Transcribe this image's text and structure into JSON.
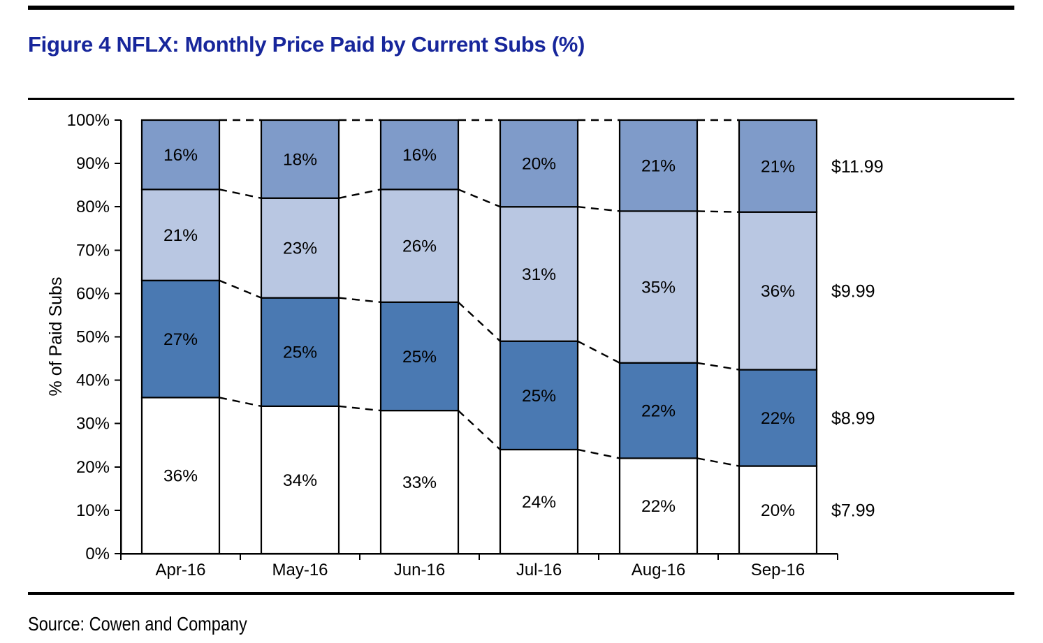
{
  "header": {
    "title": "Figure 4 NFLX: Monthly Price Paid by Current Subs (%)",
    "title_color": "#17269b"
  },
  "footer": {
    "source": "Source: Cowen and Company"
  },
  "chart_data": {
    "type": "bar",
    "stacked": true,
    "percent_stacked": true,
    "title": "Figure 4 NFLX: Monthly Price Paid by Current Subs (%)",
    "xlabel": "",
    "ylabel": "% of Paid Subs",
    "ylim": [
      0,
      100
    ],
    "grid": false,
    "legend_position": "right-of-last-bar",
    "y_tick_labels": [
      "0%",
      "10%",
      "20%",
      "30%",
      "40%",
      "50%",
      "60%",
      "70%",
      "80%",
      "90%",
      "100%"
    ],
    "categories": [
      "Apr-16",
      "May-16",
      "Jun-16",
      "Jul-16",
      "Aug-16",
      "Sep-16"
    ],
    "series": [
      {
        "name": "$7.99",
        "color": "#ffffff",
        "values": [
          36,
          34,
          33,
          24,
          22,
          20
        ]
      },
      {
        "name": "$8.99",
        "color": "#4a79b2",
        "values": [
          27,
          25,
          25,
          25,
          22,
          22
        ]
      },
      {
        "name": "$9.99",
        "color": "#b9c7e2",
        "values": [
          21,
          23,
          26,
          31,
          35,
          36
        ]
      },
      {
        "name": "$11.99",
        "color": "#7f9bc9",
        "values": [
          16,
          18,
          16,
          20,
          21,
          21
        ]
      }
    ],
    "data_label_suffix": "%",
    "connector_lines": "dashed",
    "bar_border_color": "#000000",
    "annotation_labels_right": [
      "$11.99",
      "$9.99",
      "$8.99",
      "$7.99"
    ]
  }
}
